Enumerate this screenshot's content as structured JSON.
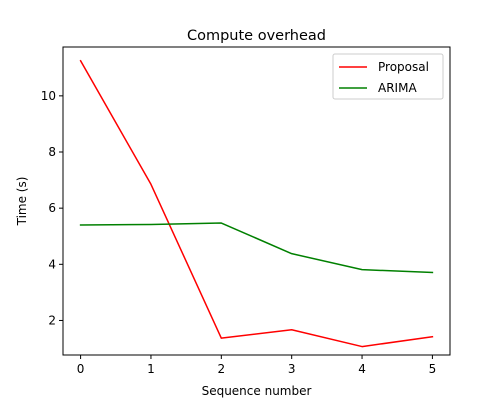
{
  "chart_data": {
    "type": "line",
    "title": "Compute overhead",
    "xlabel": "Sequence number",
    "ylabel": "Time (s)",
    "x": [
      0,
      1,
      2,
      3,
      4,
      5
    ],
    "xlim": [
      -0.25,
      5.25
    ],
    "ylim": [
      0.77,
      11.74
    ],
    "xticks": [
      0,
      1,
      2,
      3,
      4,
      5
    ],
    "yticks": [
      2,
      4,
      6,
      8,
      10
    ],
    "grid": false,
    "legend_position": "top-right",
    "series": [
      {
        "name": "Proposal",
        "color": "#ff0000",
        "values": [
          11.25,
          6.85,
          1.37,
          1.67,
          1.07,
          1.42
        ]
      },
      {
        "name": "ARIMA",
        "color": "#008000",
        "values": [
          5.4,
          5.42,
          5.47,
          4.38,
          3.81,
          3.71
        ]
      }
    ]
  }
}
